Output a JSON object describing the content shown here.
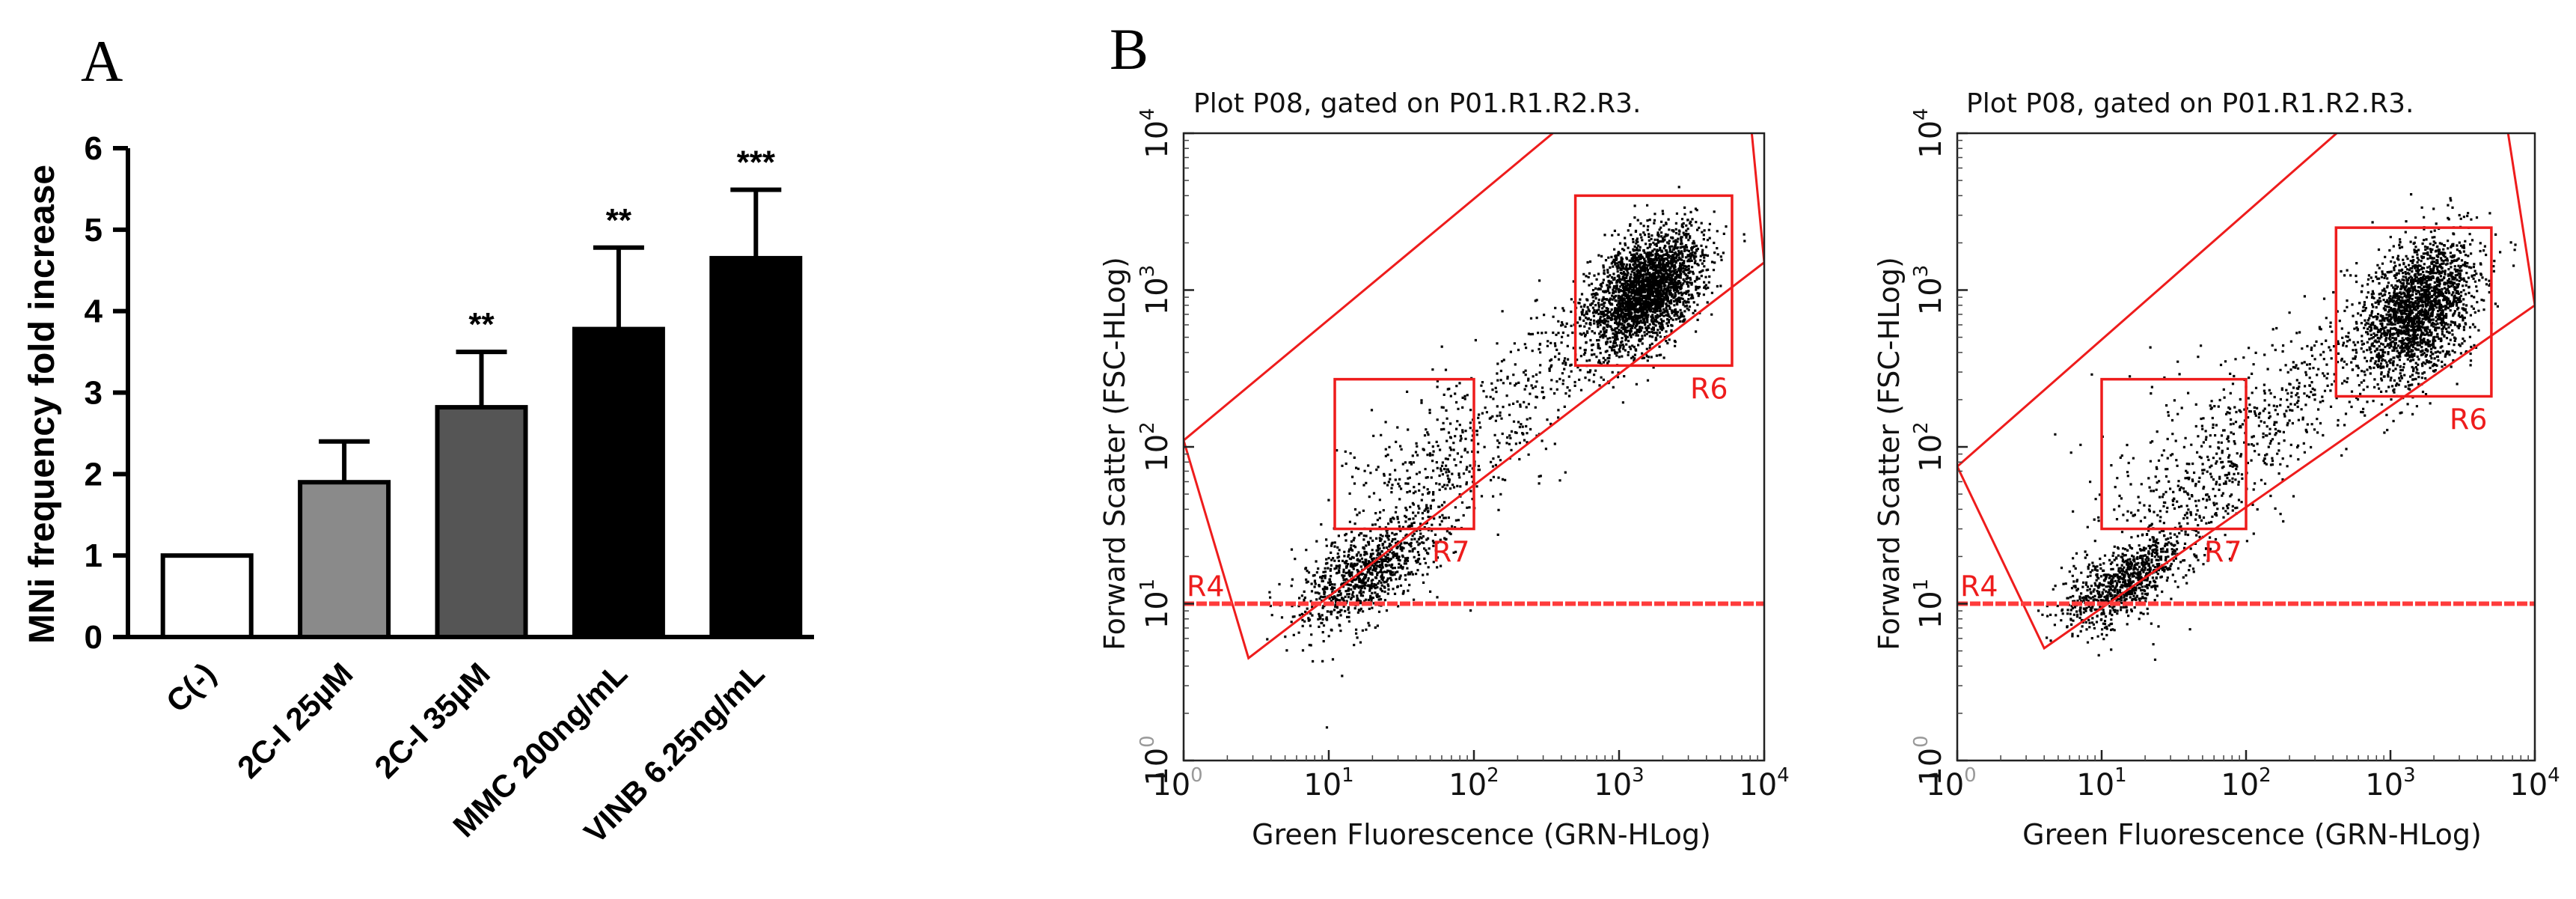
{
  "panel_labels": {
    "a": "A",
    "b": "B"
  },
  "colors": {
    "gate": "#ee1c1c",
    "threshold": "#ff3b3b",
    "point": "#000000",
    "axis": "#000000",
    "grid_tick": "#888888"
  },
  "chart_data": [
    {
      "id": "bar",
      "type": "bar",
      "title": "",
      "ylabel": "MNi  frequency fold increase",
      "xlabel": "",
      "ylim": [
        0,
        6
      ],
      "yticks": [
        "0",
        "1",
        "2",
        "3",
        "4",
        "5",
        "6"
      ],
      "categories": [
        "C(-)",
        "2C-I 25µM",
        "2C-I 35µM",
        "MMC 200ng/mL",
        "VINB 6.25ng/mL"
      ],
      "values": [
        1.0,
        1.9,
        2.82,
        3.78,
        4.65
      ],
      "errors": [
        0,
        0.5,
        0.68,
        1.0,
        0.84
      ],
      "significance": [
        "",
        "",
        "**",
        "**",
        "***"
      ],
      "bar_fill": [
        "#ffffff",
        "#8a8a8a",
        "#555555",
        "#000000",
        "#000000"
      ]
    },
    {
      "id": "scatter1",
      "type": "scatter",
      "title": "Plot P08, gated on P01.R1.R2.R3.",
      "xlabel": "Green Fluorescence (GRN-HLog)",
      "ylabel": "Forward Scatter (FSC-HLog)",
      "x_scale": "log",
      "y_scale": "log",
      "xlim": [
        1,
        10000
      ],
      "ylim": [
        1,
        10000
      ],
      "xtick_labels": [
        "10",
        "10",
        "10",
        "10",
        "10"
      ],
      "xtick_exps": [
        "0",
        "1",
        "2",
        "3",
        "4"
      ],
      "ytick_labels": [
        "10",
        "10",
        "10",
        "10",
        "10"
      ],
      "ytick_exps": [
        "0",
        "1",
        "2",
        "3",
        "4"
      ],
      "threshold_y": 10,
      "threshold_label": "R4",
      "polygon_gate": [
        [
          1,
          110
        ],
        [
          6500,
          95000
        ],
        [
          10000,
          1500
        ],
        [
          2.8,
          4.5
        ]
      ],
      "regions": [
        {
          "name": "R6",
          "x": [
            500,
            6000
          ],
          "y": [
            330,
            4000
          ]
        },
        {
          "name": "R7",
          "x": [
            11,
            100
          ],
          "y": [
            30,
            270
          ]
        }
      ],
      "clusters": [
        {
          "label": "main population",
          "center": [
            1500,
            1000
          ],
          "spread": [
            0.19,
            0.17
          ],
          "count": 2600
        },
        {
          "label": "low population",
          "center": [
            18,
            16
          ],
          "spread": [
            0.22,
            0.12
          ],
          "count": 650
        },
        {
          "label": "diagonal band",
          "line_from": [
            8,
            8
          ],
          "line_to": [
            600,
            600
          ],
          "count": 700
        },
        {
          "label": "R7 sparse",
          "center": [
            40,
            70
          ],
          "spread": [
            0.28,
            0.3
          ],
          "count": 120
        }
      ]
    },
    {
      "id": "scatter2",
      "type": "scatter",
      "title": "Plot P08, gated on P01.R1.R2.R3.",
      "xlabel": "Green Fluorescence (GRN-HLog)",
      "ylabel": "Forward Scatter (FSC-HLog)",
      "x_scale": "log",
      "y_scale": "log",
      "xlim": [
        1,
        10000
      ],
      "ylim": [
        1,
        10000
      ],
      "xtick_labels": [
        "10",
        "10",
        "10",
        "10",
        "10"
      ],
      "xtick_exps": [
        "0",
        "1",
        "2",
        "3",
        "4"
      ],
      "ytick_labels": [
        "10",
        "10",
        "10",
        "10",
        "10"
      ],
      "ytick_exps": [
        "0",
        "1",
        "2",
        "3",
        "4"
      ],
      "threshold_y": 10,
      "threshold_label": "R4",
      "polygon_gate": [
        [
          1,
          75
        ],
        [
          4700,
          70000
        ],
        [
          10000,
          800
        ],
        [
          4,
          5.2
        ]
      ],
      "regions": [
        {
          "name": "R6",
          "x": [
            420,
            5000
          ],
          "y": [
            210,
            2500
          ]
        },
        {
          "name": "R7",
          "x": [
            10,
            100
          ],
          "y": [
            30,
            270
          ]
        }
      ],
      "clusters": [
        {
          "label": "main population",
          "center": [
            1500,
            750
          ],
          "spread": [
            0.2,
            0.2
          ],
          "count": 2100
        },
        {
          "label": "low population",
          "center": [
            14,
            14
          ],
          "spread": [
            0.2,
            0.1
          ],
          "count": 700
        },
        {
          "label": "diagonal band",
          "line_from": [
            8,
            9
          ],
          "line_to": [
            500,
            500
          ],
          "count": 700
        },
        {
          "label": "R7 sparse",
          "center": [
            35,
            70
          ],
          "spread": [
            0.3,
            0.32
          ],
          "count": 170
        }
      ]
    }
  ]
}
